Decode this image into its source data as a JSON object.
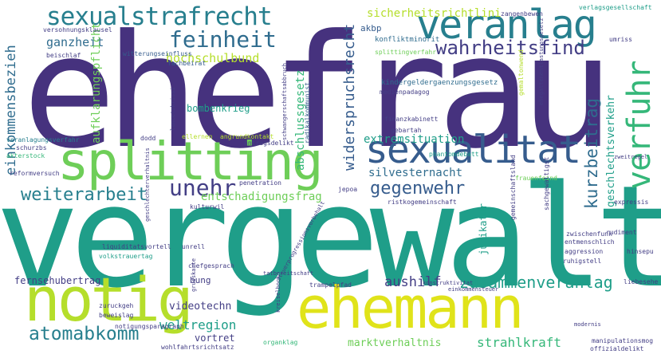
{
  "palette": {
    "indigo": "#46327e",
    "violet": "#433e85",
    "blue": "#365c8d",
    "steel": "#2f6c8e",
    "teal": "#277f8e",
    "sea": "#1f9e89",
    "green": "#35b779",
    "lime": "#6ece58",
    "chartreuse": "#b5de2b",
    "yellow": "#e0e31a"
  },
  "words": [
    "ehefrau",
    "vergewalt",
    "splitting",
    "notig",
    "ehemann",
    "sexualitat",
    "veranlag",
    "sexualstrafrecht",
    "feinheit",
    "verfuhr",
    "wahrheitsfind",
    "unehr",
    "weiterarbeit",
    "gegenwehr",
    "kurzbeitrag",
    "atomabkomm",
    "zusammenveranlag",
    "einkommensbezieh",
    "widerspruchsrecht",
    "extremsituation",
    "hochschulbund",
    "ganzheit",
    "aufklarungspflicht",
    "sicherheitsrichtlini",
    "abschlussgesetz",
    "silvesternacht",
    "geschlechtsverkehr",
    "entschadigungsfrag",
    "weltregion",
    "aushilf",
    "strahlkraft",
    "fernsehubertrag",
    "videotechn",
    "bombenkrieg",
    "marktverhaltnis",
    "vortret",
    "judikatur",
    "akbp",
    "bung",
    "konfliktminorit",
    "kindergeldergaenzungsgesetz",
    "splittingverfahr",
    "medienpadagog",
    "zangenbewen",
    "verlagsgesellschaft",
    "versohnungsklausel",
    "beischlaf",
    "witterungseinfluss",
    "fachbeirat",
    "radikalkommunist",
    "finanzkabinett",
    "gebartah",
    "gemaltonwend",
    "ehegattenentlastungsgesetz",
    "phantomdebatt",
    "frauenfeind",
    "umriss",
    "veranlagungsverfahr",
    "schurzbs",
    "akterstock",
    "reformversuch",
    "dodd",
    "ellernen",
    "angrundkontakt",
    "antragsdelikt",
    "schwangerschaftsabbruch",
    "lancetzkrissi",
    "penetration",
    "ristkogemeinschaft",
    "sachgewaltigst",
    "expressis",
    "gemeinschaftsland",
    "jepoa",
    "kulturwil",
    "rudiment",
    "zwischenfunk",
    "entmenschlich",
    "liquiditatsvortell",
    "volkstrauertag",
    "unrell",
    "hinsepu",
    "geschlechterverhaltnis",
    "chefgesprach",
    "tatbereitschaft",
    "aggression",
    "ruhigstell",
    "liebesehe",
    "trampelpfad",
    "konstruktivitat",
    "einkommensteuer",
    "zuruckgeh",
    "notigungsparagraph",
    "beweislag",
    "grusskarte",
    "organklag",
    "wohlfahrtsrichtsatz",
    "manipulationsmog",
    "offizialdelikt",
    "steuerprogressionsvorbehalt",
    "kreiselbock",
    "zweitregel",
    "modernis"
  ]
}
